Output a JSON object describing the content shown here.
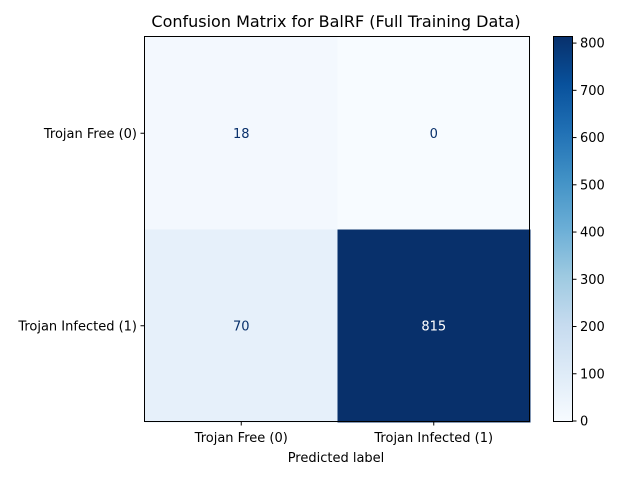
{
  "chart_data": {
    "type": "heatmap",
    "title": "Confusion Matrix for BalRF (Full Training Data)",
    "xlabel": "Predicted label",
    "ylabel": "",
    "x_categories": [
      "Trojan Free (0)",
      "Trojan Infected (1)"
    ],
    "y_categories": [
      "Trojan Free (0)",
      "Trojan Infected (1)"
    ],
    "values": [
      [
        18,
        0
      ],
      [
        70,
        815
      ]
    ],
    "colormap": "Blues",
    "colorbar": {
      "min": 0,
      "max": 815,
      "ticks": [
        "0",
        "100",
        "200",
        "300",
        "400",
        "500",
        "600",
        "700",
        "800"
      ]
    }
  }
}
